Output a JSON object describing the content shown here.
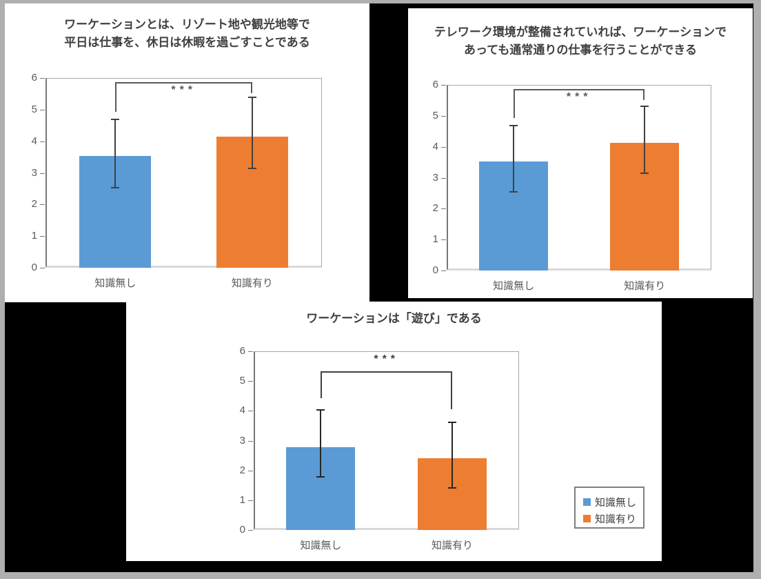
{
  "background": {
    "frame_color": "#b1aeb1",
    "backdrop_color": "#000000",
    "panel_color": "#ffffff"
  },
  "colors": {
    "blue": "#5B9BD5",
    "orange": "#ED7D31",
    "axis_text": "#595959",
    "title_text": "#404040",
    "frame_line": "#a6a6a6",
    "axis_line": "#767676",
    "baseline": "#d9d9d9"
  },
  "legend": {
    "items": [
      {
        "label": "知識無し",
        "color_key": "blue"
      },
      {
        "label": "知識有り",
        "color_key": "orange"
      }
    ],
    "position": "bottom-right"
  },
  "chart_data": [
    {
      "type": "bar",
      "title_lines": [
        "ワーケーションとは、リゾート地や観光地等で",
        "平日は仕事を、休日は休暇を過ごすことである"
      ],
      "categories": [
        "知識無し",
        "知識有り"
      ],
      "series": [
        {
          "name": "知識無し",
          "color_key": "blue",
          "value": 3.53,
          "err_low": 2.53,
          "err_high": 4.7
        },
        {
          "name": "知識有り",
          "color_key": "orange",
          "value": 4.14,
          "err_low": 3.14,
          "err_high": 5.4
        }
      ],
      "ylim": [
        0,
        6
      ],
      "yticks": [
        0,
        1,
        2,
        3,
        4,
        5,
        6
      ],
      "grid": false,
      "significance": {
        "label": "***",
        "line_y": 5.87,
        "left_drop": 4.93,
        "right_drop": 5.52,
        "label_side": "below"
      },
      "error_color": "#404040",
      "bracket_color": "#595959"
    },
    {
      "type": "bar",
      "title_lines": [
        "テレワーク環境が整備されていれば、ワーケーションで",
        "あっても通常通りの仕事を行うことができる"
      ],
      "categories": [
        "知識無し",
        "知識有り"
      ],
      "series": [
        {
          "name": "知識無し",
          "color_key": "blue",
          "value": 3.53,
          "err_low": 2.55,
          "err_high": 4.68
        },
        {
          "name": "知識有り",
          "color_key": "orange",
          "value": 4.13,
          "err_low": 3.14,
          "err_high": 5.31
        }
      ],
      "ylim": [
        0,
        6
      ],
      "yticks": [
        0,
        1,
        2,
        3,
        4,
        5,
        6
      ],
      "grid": false,
      "significance": {
        "label": "***",
        "line_y": 5.87,
        "left_drop": 4.92,
        "right_drop": 5.52,
        "label_side": "below"
      },
      "error_color": "#404040",
      "bracket_color": "#595959"
    },
    {
      "type": "bar",
      "title_lines": [
        "ワーケーションは「遊び」である"
      ],
      "categories": [
        "知識無し",
        "知識有り"
      ],
      "series": [
        {
          "name": "知識無し",
          "color_key": "blue",
          "value": 2.78,
          "err_low": 1.79,
          "err_high": 4.02
        },
        {
          "name": "知識有り",
          "color_key": "orange",
          "value": 2.41,
          "err_low": 1.41,
          "err_high": 3.62
        }
      ],
      "ylim": [
        0,
        6
      ],
      "yticks": [
        0,
        1,
        2,
        3,
        4,
        5,
        6
      ],
      "grid": false,
      "significance": {
        "label": "***",
        "line_y": 5.32,
        "left_drop": 4.42,
        "right_drop": 4.05,
        "label_side": "above"
      },
      "error_color": "#262626",
      "bracket_color": "#404040"
    }
  ]
}
